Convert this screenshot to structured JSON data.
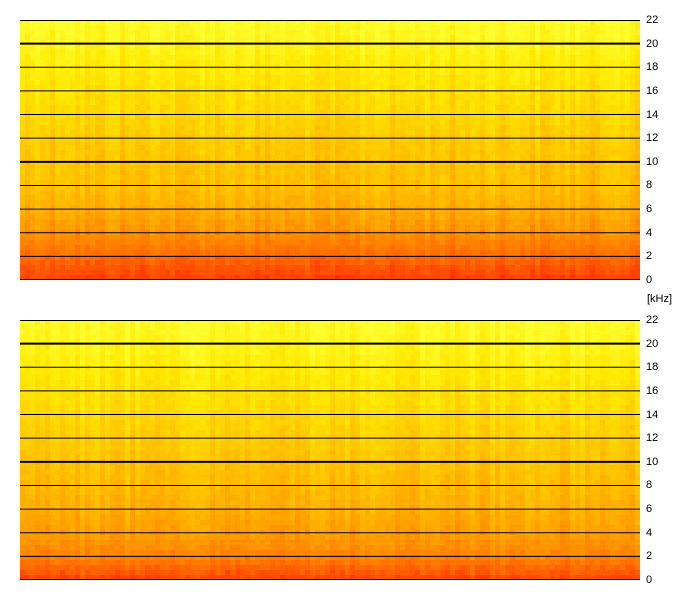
{
  "chart_data": [
    {
      "type": "heatmap",
      "ylabel": "[kHz]",
      "ylim": [
        0,
        22
      ],
      "y_ticks": [
        0,
        2,
        4,
        6,
        8,
        10,
        12,
        14,
        16,
        18,
        20,
        22
      ],
      "tick_labels": [
        "0",
        "2",
        "4",
        "6",
        "8",
        "10",
        "12",
        "14",
        "16",
        "18",
        "20",
        "22"
      ],
      "grid": true,
      "colormap": [
        "#ff2a00",
        "#ff6a00",
        "#ff9c00",
        "#ffc400",
        "#ffe800",
        "#ffff30"
      ],
      "gridline_color": "#000000",
      "bands_khz": [
        0,
        2,
        4,
        6,
        8,
        10,
        12,
        14,
        16,
        18,
        20,
        22
      ],
      "band_intensity": [
        0.06,
        0.2,
        0.36,
        0.48,
        0.58,
        0.6,
        0.64,
        0.7,
        0.76,
        0.82,
        0.9,
        0.97
      ]
    },
    {
      "type": "heatmap",
      "ylabel": "[kHz]",
      "ylim": [
        0,
        22
      ],
      "y_ticks": [
        0,
        2,
        4,
        6,
        8,
        10,
        12,
        14,
        16,
        18,
        20,
        22
      ],
      "tick_labels": [
        "0",
        "2",
        "4",
        "6",
        "8",
        "10",
        "12",
        "14",
        "16",
        "18",
        "20",
        "22"
      ],
      "grid": true,
      "colormap": [
        "#ff2a00",
        "#ff6a00",
        "#ff9c00",
        "#ffc400",
        "#ffe800",
        "#ffff30"
      ],
      "gridline_color": "#000000",
      "bands_khz": [
        0,
        2,
        4,
        6,
        8,
        10,
        12,
        14,
        16,
        18,
        20,
        22
      ],
      "band_intensity": [
        0.08,
        0.3,
        0.42,
        0.5,
        0.56,
        0.6,
        0.66,
        0.72,
        0.78,
        0.84,
        0.92,
        0.97
      ]
    }
  ],
  "axis_unit": "[kHz]"
}
